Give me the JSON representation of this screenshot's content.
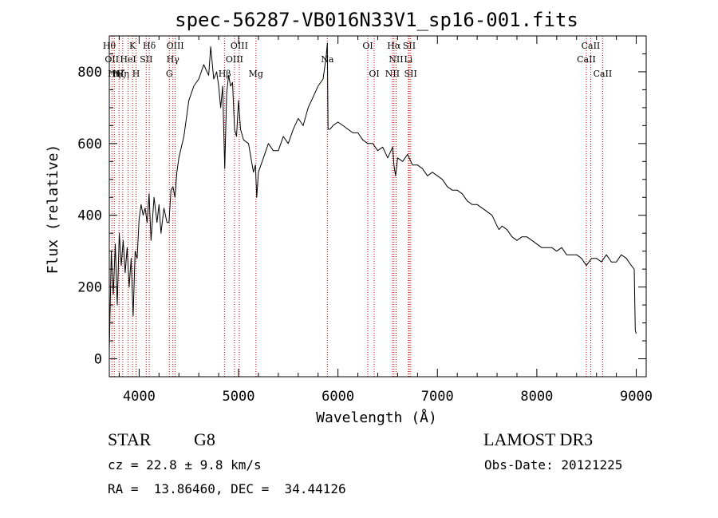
{
  "chart_data": {
    "type": "line",
    "title": "spec-56287-VB016N33V1_sp16-001.fits",
    "xlabel": "Wavelength (Å)",
    "ylabel": "Flux (relative)",
    "xlim": [
      3700,
      9100
    ],
    "ylim": [
      -50,
      900
    ],
    "xticks": [
      4000,
      5000,
      6000,
      7000,
      8000,
      9000
    ],
    "yticks": [
      0,
      200,
      400,
      600,
      800
    ],
    "grid": false,
    "series": [
      {
        "x": [
          3700,
          3720,
          3740,
          3760,
          3780,
          3800,
          3820,
          3840,
          3860,
          3880,
          3900,
          3920,
          3940,
          3960,
          3980,
          4000,
          4020,
          4040,
          4060,
          4080,
          4100,
          4120,
          4150,
          4180,
          4200,
          4220,
          4250,
          4280,
          4300,
          4320,
          4340,
          4360,
          4380,
          4400,
          4450,
          4500,
          4550,
          4600,
          4650,
          4700,
          4720,
          4750,
          4780,
          4800,
          4820,
          4840,
          4861,
          4880,
          4900,
          4920,
          4940,
          4960,
          4980,
          5000,
          5020,
          5050,
          5100,
          5150,
          5170,
          5183,
          5200,
          5250,
          5300,
          5350,
          5400,
          5450,
          5500,
          5550,
          5600,
          5650,
          5700,
          5750,
          5800,
          5850,
          5880,
          5893,
          5900,
          5920,
          5950,
          6000,
          6050,
          6100,
          6150,
          6200,
          6250,
          6300,
          6350,
          6400,
          6450,
          6500,
          6550,
          6563,
          6580,
          6600,
          6650,
          6700,
          6750,
          6800,
          6850,
          6900,
          6950,
          7000,
          7050,
          7100,
          7150,
          7200,
          7250,
          7300,
          7350,
          7400,
          7450,
          7500,
          7550,
          7600,
          7620,
          7650,
          7700,
          7750,
          7800,
          7850,
          7900,
          7950,
          8000,
          8050,
          8100,
          8150,
          8200,
          8250,
          8300,
          8350,
          8400,
          8450,
          8498,
          8550,
          8600,
          8650,
          8700,
          8750,
          8800,
          8850,
          8900,
          8950,
          8980,
          8990,
          9000
        ],
        "y": [
          20,
          300,
          180,
          320,
          150,
          350,
          260,
          330,
          240,
          310,
          200,
          280,
          120,
          300,
          280,
          390,
          430,
          400,
          420,
          380,
          460,
          330,
          450,
          380,
          430,
          350,
          420,
          380,
          380,
          470,
          480,
          450,
          520,
          560,
          620,
          720,
          760,
          780,
          820,
          790,
          870,
          780,
          800,
          760,
          700,
          760,
          530,
          740,
          790,
          760,
          770,
          640,
          620,
          720,
          640,
          610,
          600,
          520,
          540,
          450,
          520,
          560,
          600,
          580,
          580,
          620,
          600,
          640,
          670,
          650,
          700,
          730,
          760,
          780,
          840,
          880,
          640,
          640,
          650,
          660,
          650,
          640,
          630,
          630,
          610,
          600,
          600,
          580,
          590,
          560,
          590,
          540,
          510,
          560,
          550,
          570,
          540,
          540,
          530,
          510,
          520,
          510,
          500,
          480,
          470,
          470,
          460,
          440,
          430,
          430,
          420,
          410,
          400,
          370,
          360,
          370,
          360,
          340,
          330,
          340,
          340,
          330,
          320,
          310,
          310,
          310,
          300,
          310,
          290,
          290,
          290,
          280,
          260,
          280,
          280,
          270,
          290,
          270,
          270,
          290,
          280,
          260,
          250,
          80,
          70
        ]
      }
    ],
    "lines": [
      {
        "x": 3700,
        "label": "Hθ",
        "row": 0
      },
      {
        "x": 3726,
        "label": "OII",
        "row": 1
      },
      {
        "x": 3750,
        "label": "Hη",
        "row": 2
      },
      {
        "x": 3798,
        "label": "Hζ",
        "row": 2
      },
      {
        "x": 3835,
        "label": "Hη",
        "row": 2
      },
      {
        "x": 3889,
        "label": "HeI",
        "row": 1
      },
      {
        "x": 3934,
        "label": "K",
        "row": 0
      },
      {
        "x": 3969,
        "label": "H",
        "row": 2
      },
      {
        "x": 4072,
        "label": "SII",
        "row": 1
      },
      {
        "x": 4102,
        "label": "Hδ",
        "row": 0
      },
      {
        "x": 4304,
        "label": "G",
        "row": 2
      },
      {
        "x": 4340,
        "label": "Hγ",
        "row": 1
      },
      {
        "x": 4363,
        "label": "OIII",
        "row": 0
      },
      {
        "x": 4861,
        "label": "Hβ",
        "row": 2
      },
      {
        "x": 4959,
        "label": "OIII",
        "row": 1
      },
      {
        "x": 5007,
        "label": "OIII",
        "row": 0
      },
      {
        "x": 5175,
        "label": "Mg",
        "row": 2
      },
      {
        "x": 5893,
        "label": "Na",
        "row": 1
      },
      {
        "x": 6300,
        "label": "OI",
        "row": 0
      },
      {
        "x": 6364,
        "label": "OI",
        "row": 2
      },
      {
        "x": 6548,
        "label": "NII",
        "row": 2
      },
      {
        "x": 6563,
        "label": "Hα",
        "row": 0
      },
      {
        "x": 6584,
        "label": "NII",
        "row": 1
      },
      {
        "x": 6708,
        "label": "Li",
        "row": 1
      },
      {
        "x": 6717,
        "label": "SII",
        "row": 0
      },
      {
        "x": 6731,
        "label": "SII",
        "row": 2
      },
      {
        "x": 8498,
        "label": "CaII",
        "row": 1
      },
      {
        "x": 8542,
        "label": "CaII",
        "row": 0
      },
      {
        "x": 8662,
        "label": "CaII",
        "row": 2
      }
    ]
  },
  "info": {
    "class_label": "STAR",
    "subclass_label": "G8",
    "survey_label": "LAMOST DR3",
    "cz_text": "cz = 22.8 ± 9.8 km/s",
    "obs_date_text": "Obs-Date: 20121225",
    "coords_text": "RA =  13.86460, DEC =  34.44126"
  },
  "colors": {
    "spectrum": "#000000",
    "line_markers": "#cc0000",
    "axes": "#000000",
    "background": "#ffffff"
  }
}
